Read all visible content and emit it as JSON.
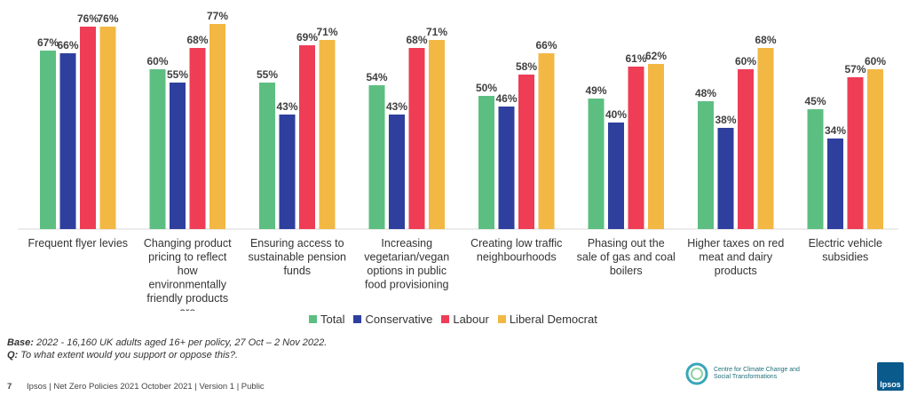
{
  "chart_data": {
    "type": "bar",
    "categories": [
      "Frequent flyer levies",
      "Changing product pricing to reflect how environmentally friendly products are",
      "Ensuring access to sustainable pension funds",
      "Increasing vegetarian/vegan options in public food provisioning",
      "Creating low traffic neighbourhoods",
      "Phasing out the sale of gas and coal boilers",
      "Higher taxes on red meat and dairy products",
      "Electric vehicle subsidies"
    ],
    "category_lines": [
      [
        "Frequent flyer levies"
      ],
      [
        "Changing product",
        "pricing to reflect",
        "how",
        "environmentally",
        "friendly products",
        "are"
      ],
      [
        "Ensuring access to",
        "sustainable pension",
        "funds"
      ],
      [
        "Increasing",
        "vegetarian/vegan",
        "options in public",
        "food provisioning"
      ],
      [
        "Creating low traffic",
        "neighbourhoods"
      ],
      [
        "Phasing out the",
        "sale of gas and coal",
        "boilers"
      ],
      [
        "Higher taxes on red",
        "meat and dairy",
        "products"
      ],
      [
        "Electric vehicle",
        "subsidies"
      ]
    ],
    "series": [
      {
        "name": "Total",
        "color": "#5cbf81",
        "values": [
          67,
          60,
          55,
          54,
          50,
          49,
          48,
          45
        ]
      },
      {
        "name": "Conservative",
        "color": "#2e3f9e",
        "values": [
          66,
          55,
          43,
          43,
          46,
          40,
          38,
          34
        ]
      },
      {
        "name": "Labour",
        "color": "#ee3d55",
        "values": [
          76,
          68,
          69,
          68,
          58,
          61,
          60,
          57
        ]
      },
      {
        "name": "Liberal Democrat",
        "color": "#f2b843",
        "values": [
          76,
          77,
          71,
          71,
          66,
          62,
          68,
          60
        ]
      }
    ],
    "value_suffix": "%",
    "ylim": [
      0,
      80
    ],
    "legend_position": "bottom",
    "grid": false
  },
  "base_label": "Base:",
  "base_text": "2022 - 16,160 UK adults aged 16+ per policy, 27 Oct – 2 Nov 2022.",
  "question_label": "Q:",
  "question_text": "To what extent would you support or oppose this?.",
  "footer": {
    "page_number": "7",
    "text": "Ipsos | Net Zero Policies 2021  October 2021 | Version 1 | Public"
  },
  "logos": {
    "cccst_text": "Centre for Climate Change and Social Transformations",
    "ipsos_text": "Ipsos"
  }
}
